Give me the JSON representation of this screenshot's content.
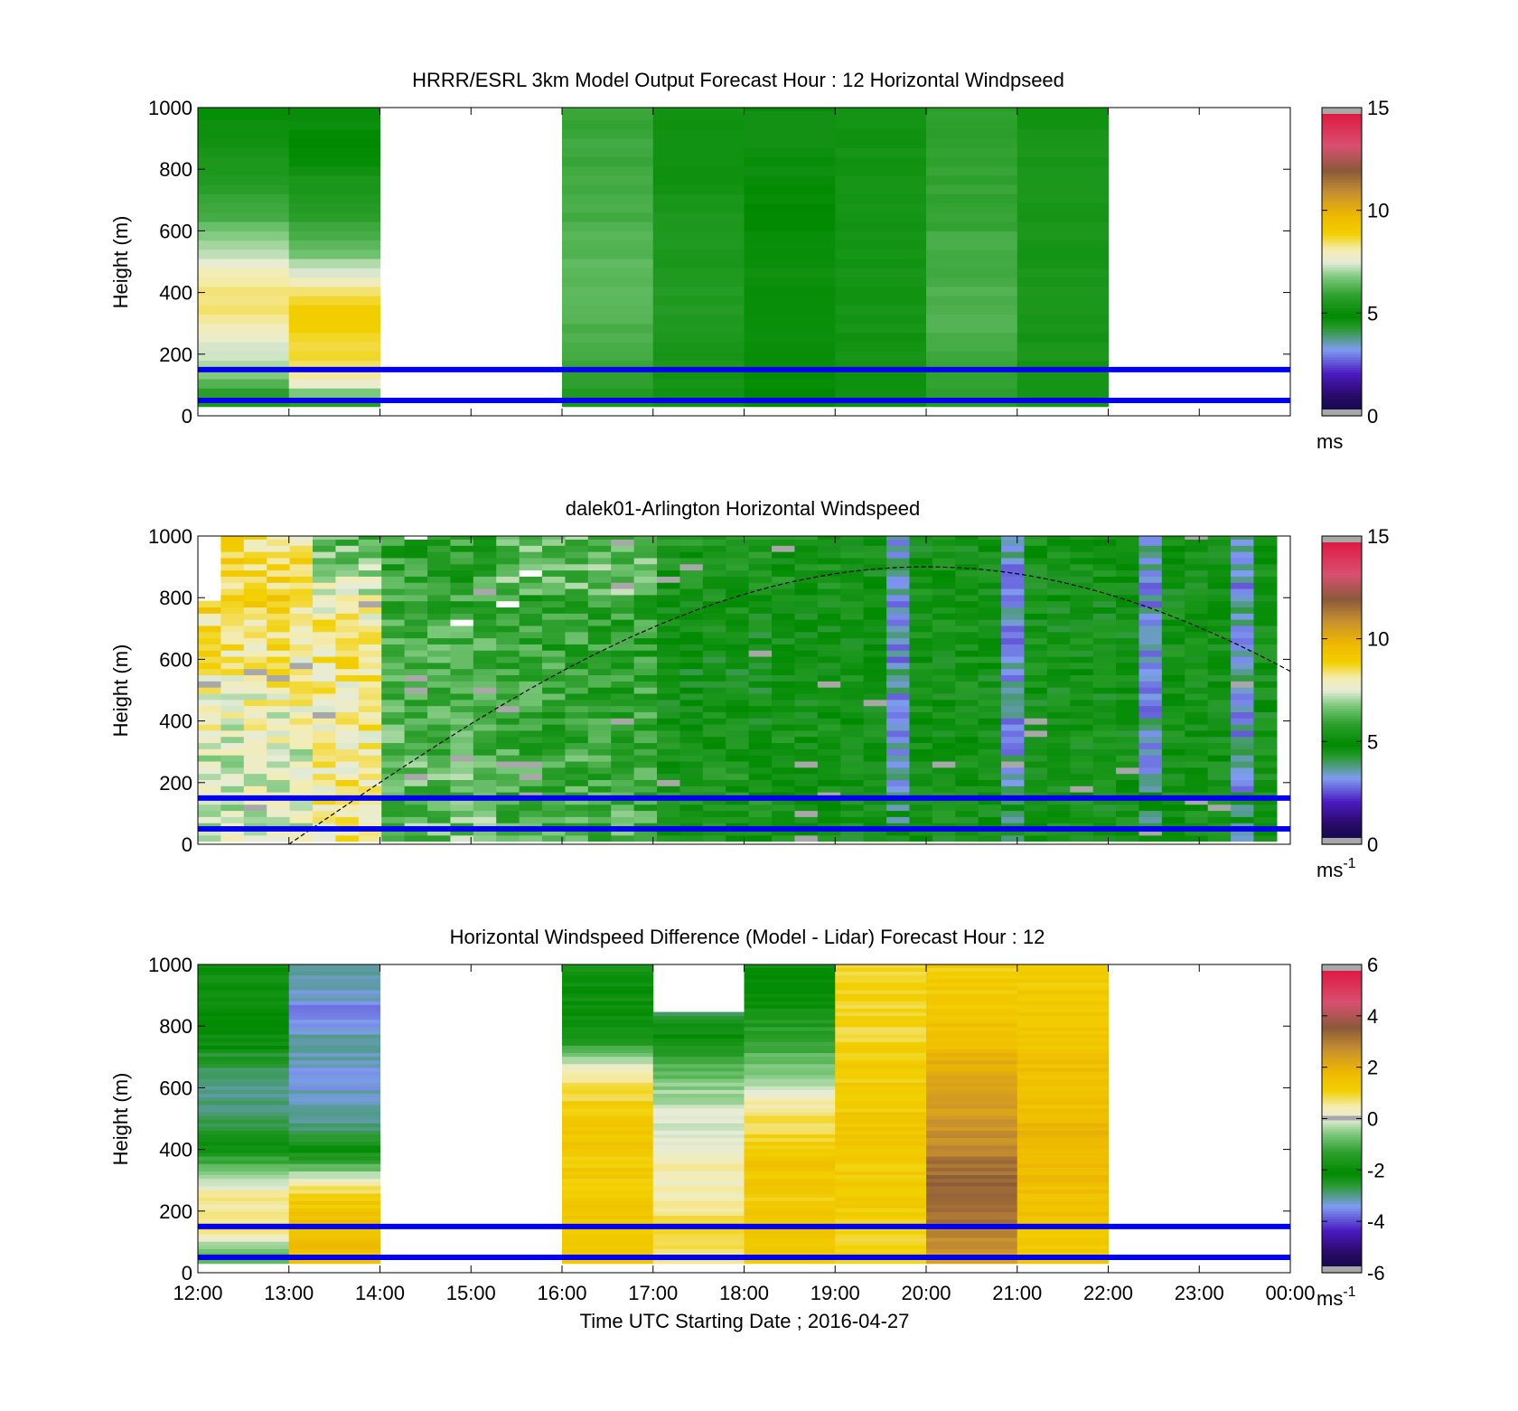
{
  "figure": {
    "xtick_labels": [
      "12:00",
      "13:00",
      "14:00",
      "15:00",
      "16:00",
      "17:00",
      "18:00",
      "19:00",
      "20:00",
      "21:00",
      "22:00",
      "23:00",
      "00:00"
    ],
    "xlabel": "Time UTC  Starting Date ; 2016-04-27",
    "colors": {
      "reference_lines": "#0000ee",
      "nan_gray": "#a8a8a8",
      "axes": "#000000"
    }
  },
  "chart_data": [
    {
      "type": "heatmap",
      "title": "HRRR/ESRL 3km Model Output   Forecast Hour : 12 Horizontal Windpseed",
      "ylabel": "Height (m)",
      "ylim": [
        0,
        1000
      ],
      "yticks": [
        0,
        200,
        400,
        600,
        800,
        1000
      ],
      "x_columns": [
        "12:00",
        "13:00",
        "16:00",
        "17:00",
        "18:00",
        "19:00",
        "20:00",
        "21:00"
      ],
      "column_hours": [
        0,
        1,
        4,
        5,
        6,
        7,
        8,
        9
      ],
      "approx_values_ms": {
        "heights_m": [
          30,
          100,
          175,
          250,
          350,
          450,
          550,
          650,
          750,
          850,
          950
        ],
        "12:00": [
          5.2,
          6.2,
          7.2,
          7.6,
          8.4,
          8.2,
          7.0,
          6.2,
          5.7,
          5.3,
          5.1
        ],
        "13:00": [
          5.3,
          7.6,
          8.6,
          8.7,
          9.0,
          7.7,
          6.4,
          5.8,
          5.4,
          5.0,
          4.8
        ],
        "16:00": [
          5.4,
          5.8,
          6.0,
          6.2,
          6.4,
          6.4,
          6.3,
          6.2,
          6.1,
          6.0,
          6.0
        ],
        "17:00": [
          5.1,
          5.3,
          5.4,
          5.5,
          5.6,
          5.6,
          5.5,
          5.4,
          5.3,
          5.2,
          5.2
        ],
        "18:00": [
          4.9,
          5.0,
          5.0,
          5.1,
          5.1,
          5.1,
          5.0,
          4.9,
          4.8,
          4.7,
          4.7
        ],
        "19:00": [
          5.1,
          5.2,
          5.3,
          5.3,
          5.3,
          5.3,
          5.3,
          5.3,
          5.3,
          5.3,
          5.3
        ],
        "20:00": [
          5.6,
          5.9,
          6.0,
          6.2,
          6.2,
          6.2,
          6.1,
          6.0,
          5.9,
          5.8,
          5.8
        ],
        "21:00": [
          5.3,
          5.3,
          5.4,
          5.4,
          5.4,
          5.4,
          5.4,
          5.4,
          5.4,
          5.4,
          5.3
        ]
      },
      "reference_lines_m": [
        150,
        50
      ],
      "colorbar": {
        "min": 0,
        "max": 15,
        "ticks": [
          0,
          5,
          10,
          15
        ],
        "label": "ms",
        "label_sup": ""
      }
    },
    {
      "type": "heatmap",
      "title": "dalek01-Arlington  Horizontal Windspeed",
      "ylabel": "Height (m)",
      "ylim": [
        0,
        1000
      ],
      "yticks": [
        0,
        200,
        400,
        600,
        800,
        1000
      ],
      "x_range": [
        "12:00",
        "23:50"
      ],
      "description_values_ms": "yellow ~8-9 near 12:00-13:00 aloft, green ~5-6 most of the day, blue/purple ~2-4 around 19:30-21:00 and 22:00",
      "boundary_layer_curve": {
        "start": "13:00",
        "peak": "20:00",
        "peak_height_m": 900,
        "end_height_m": 540
      },
      "reference_lines_m": [
        150,
        50
      ],
      "colorbar": {
        "min": 0,
        "max": 15,
        "ticks": [
          0,
          5,
          10,
          15
        ],
        "label": "ms",
        "label_sup": "-1"
      }
    },
    {
      "type": "heatmap",
      "title": "Horizontal Windspeed Difference (Model - Lidar) Forecast Hour : 12",
      "ylabel": "Height (m)",
      "ylim": [
        0,
        1000
      ],
      "yticks": [
        0,
        200,
        400,
        600,
        800,
        1000
      ],
      "x_columns": [
        "12:00",
        "13:00",
        "16:00",
        "17:00",
        "18:00",
        "19:00",
        "20:00",
        "21:00"
      ],
      "column_hours": [
        0,
        1,
        4,
        5,
        6,
        7,
        8,
        9
      ],
      "approx_values_ms": {
        "heights_m": [
          50,
          150,
          250,
          350,
          450,
          550,
          650,
          750,
          850,
          950
        ],
        "12:00": [
          -1.0,
          0.8,
          0.6,
          -1.0,
          -2.5,
          -3.0,
          -2.8,
          -2.2,
          -2.0,
          -1.8
        ],
        "13:00": [
          1.6,
          1.6,
          1.2,
          -1.0,
          -2.8,
          -3.2,
          -3.4,
          -3.0,
          -3.6,
          -3.0
        ],
        "16:00": [
          1.2,
          1.3,
          1.3,
          1.2,
          1.4,
          1.1,
          0.4,
          -1.5,
          -2.0,
          -1.8
        ],
        "17:00": [
          0.8,
          0.9,
          0.4,
          0.4,
          0.0,
          -0.2,
          -0.8,
          -1.8,
          -3.0,
          null
        ],
        "18:00": [
          1.2,
          1.4,
          1.2,
          1.4,
          1.0,
          0.6,
          -0.6,
          -1.2,
          -1.8,
          -2.2
        ],
        "19:00": [
          1.2,
          1.0,
          1.2,
          1.2,
          1.4,
          1.2,
          1.2,
          1.0,
          1.0,
          1.0
        ],
        "20:00": [
          2.4,
          3.0,
          3.4,
          3.2,
          2.6,
          2.4,
          2.2,
          1.6,
          1.4,
          1.2
        ],
        "21:00": [
          1.2,
          1.4,
          1.6,
          1.8,
          1.8,
          1.6,
          1.6,
          1.4,
          1.4,
          1.2
        ]
      },
      "reference_lines_m": [
        150,
        50
      ],
      "colorbar": {
        "min": -6,
        "max": 6,
        "ticks": [
          -6,
          -4,
          -2,
          0,
          2,
          4,
          6
        ],
        "label": "ms",
        "label_sup": "-1"
      }
    }
  ]
}
